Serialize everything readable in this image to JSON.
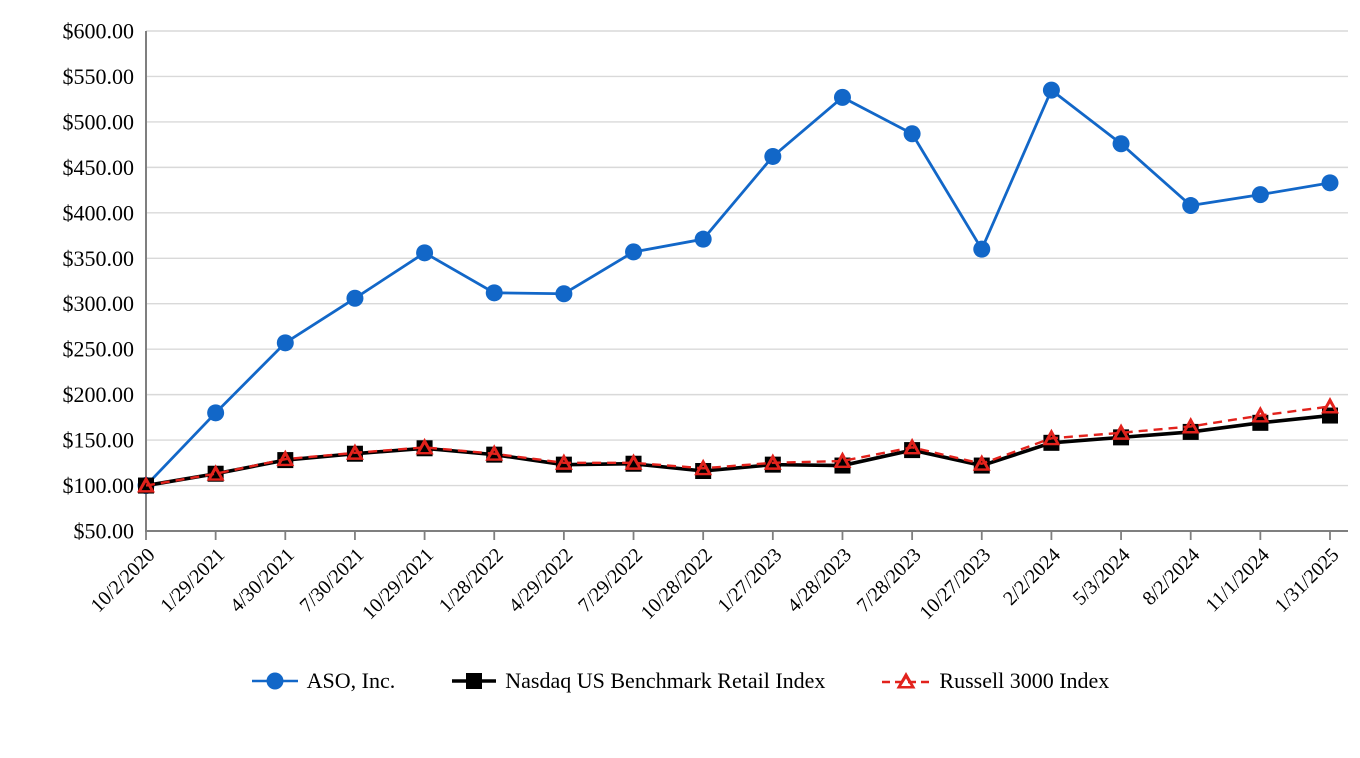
{
  "chart_data": {
    "type": "line",
    "title": "",
    "x_labels": [
      "10/2/2020",
      "1/29/2021",
      "4/30/2021",
      "7/30/2021",
      "10/29/2021",
      "1/28/2022",
      "4/29/2022",
      "7/29/2022",
      "10/28/2022",
      "1/27/2023",
      "4/28/2023",
      "7/28/2023",
      "10/27/2023",
      "2/2/2024",
      "5/3/2024",
      "8/2/2024",
      "11/1/2024",
      "1/31/2025"
    ],
    "y_axis": {
      "min": 50,
      "max": 600,
      "step": 50,
      "tick_labels": [
        "$600.00",
        "$550.00",
        "$500.00",
        "$450.00",
        "$400.00",
        "$350.00",
        "$300.00",
        "$250.00",
        "$200.00",
        "$150.00",
        "$100.00",
        "$50.00"
      ]
    },
    "grid": "horizontal",
    "legend_position": "bottom",
    "series": [
      {
        "name": "ASO, Inc.",
        "color": "#1267C8",
        "marker": "circle",
        "line_style": "solid",
        "values": [
          100,
          180,
          257,
          306,
          356,
          312,
          311,
          357,
          371,
          462,
          527,
          487,
          360,
          535,
          476,
          408,
          420,
          433
        ]
      },
      {
        "name": "Nasdaq US Benchmark Retail Index",
        "color": "#000000",
        "marker": "square",
        "line_style": "solid",
        "values": [
          100,
          113,
          128,
          135,
          141,
          134,
          123,
          124,
          116,
          123,
          122,
          139,
          122,
          147,
          153,
          159,
          169,
          177
        ]
      },
      {
        "name": "Russell 3000 Index",
        "color": "#E2221C",
        "marker": "triangle",
        "line_style": "dashed",
        "values": [
          100,
          113,
          129,
          136,
          142,
          135,
          125,
          125,
          119,
          125,
          127,
          142,
          124,
          152,
          158,
          165,
          177,
          187
        ]
      }
    ]
  },
  "colors": {
    "gridline": "#D9D9D9",
    "axis": "#7F7F7F",
    "background": "#FFFFFF",
    "text": "#000000"
  }
}
